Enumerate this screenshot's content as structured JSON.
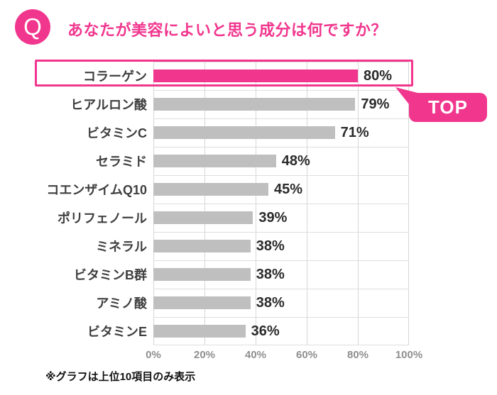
{
  "theme": {
    "accent_pink": "#F1368E",
    "bar_gray": "#BFBFBF",
    "gridline_v": "#D6D6D6",
    "gridline_h": "#DEDEDE",
    "label_dark": "#3F3F3F",
    "value_dark": "#2B2B2B",
    "axis_gray": "#8F8F8F",
    "footnote_color": "#111111"
  },
  "header": {
    "q_icon_label": "Q",
    "title": "あなたが美容によいと思う成分は何ですか？"
  },
  "chart_data": {
    "type": "bar",
    "orientation": "horizontal",
    "title": "あなたが美容によいと思う成分は何ですか？",
    "categories": [
      "コラーゲン",
      "ヒアルロン酸",
      "ビタミンC",
      "セラミド",
      "コエンザイムQ10",
      "ポリフェノール",
      "ミネラル",
      "ビタミンB群",
      "アミノ酸",
      "ビタミンE"
    ],
    "values": [
      80,
      79,
      71,
      48,
      45,
      39,
      38,
      38,
      38,
      36
    ],
    "value_labels": [
      "80%",
      "79%",
      "71%",
      "48%",
      "45%",
      "39%",
      "38%",
      "38%",
      "38%",
      "36%"
    ],
    "x_ticks": [
      "0%",
      "20%",
      "40%",
      "60%",
      "80%",
      "100%"
    ],
    "xlim": [
      0,
      100
    ],
    "grid": "both",
    "legend": "none",
    "highlight_index": 0,
    "highlight_annotation": "TOP",
    "colors": {
      "highlight_bar": "#F1368E",
      "default_bar": "#BFBFBF"
    }
  },
  "top_badge": {
    "label": "TOP"
  },
  "footnote": "※グラフは上位10項目のみ表示"
}
